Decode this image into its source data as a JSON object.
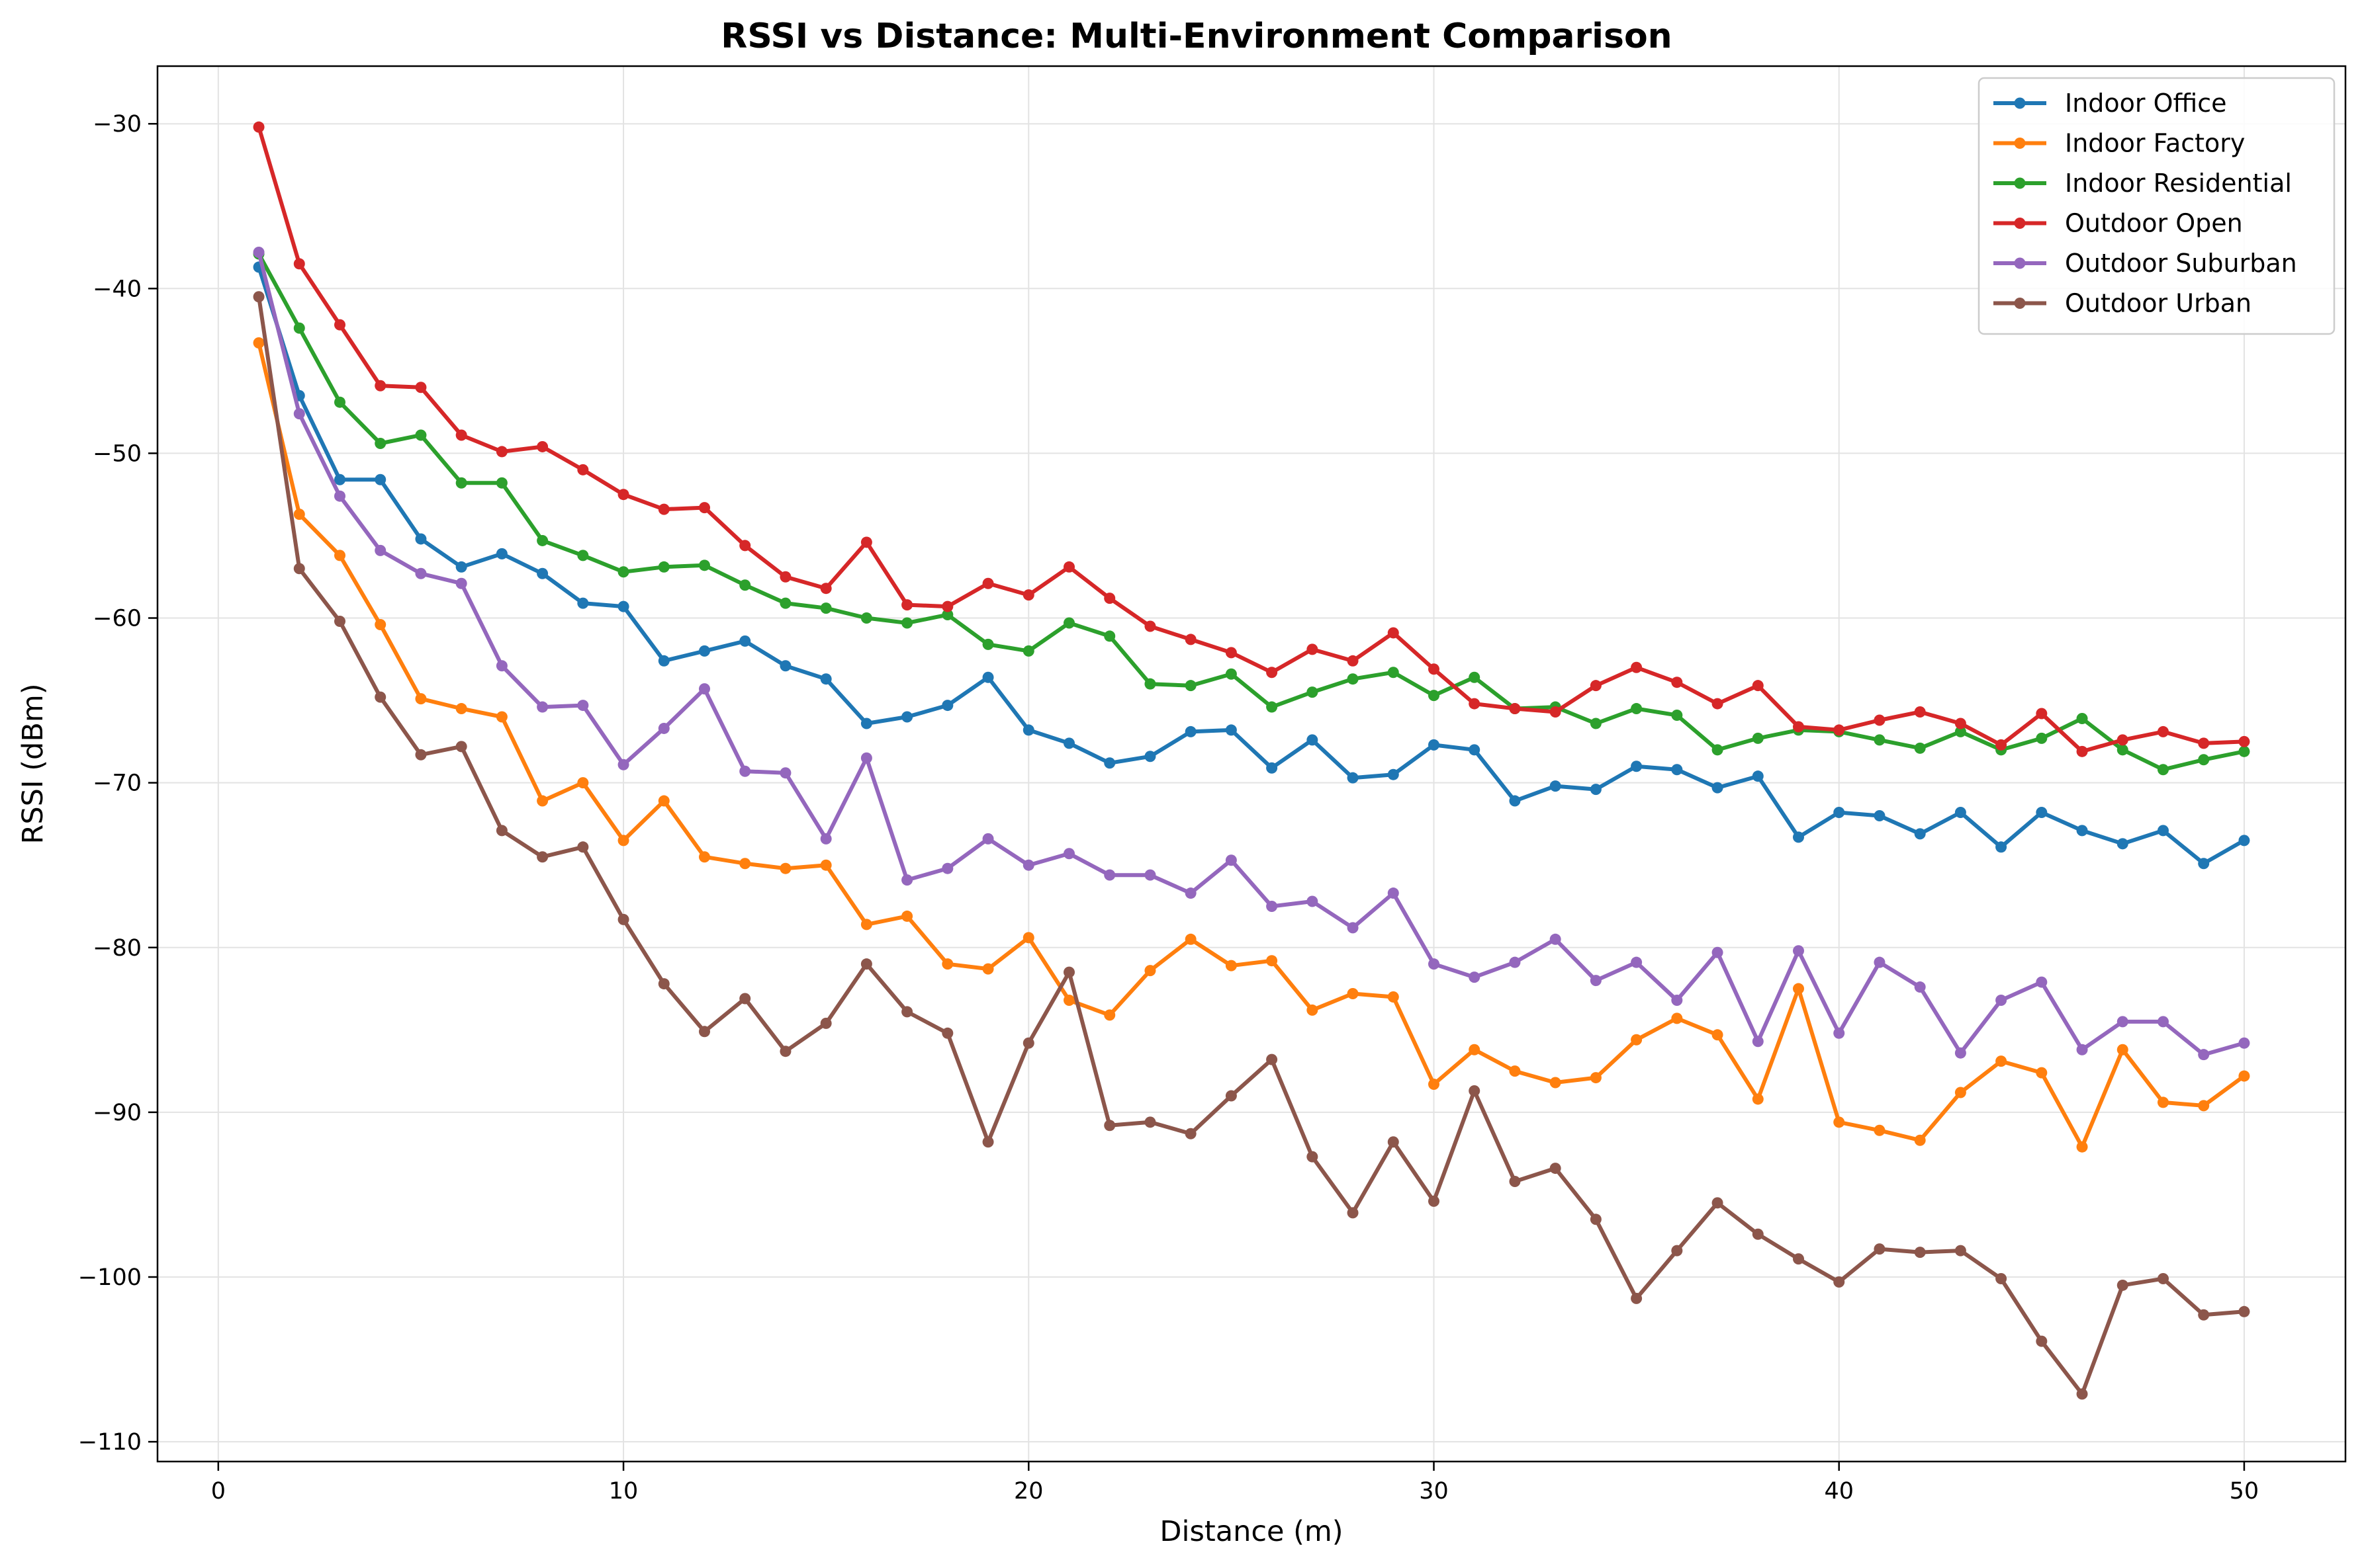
{
  "chart_data": {
    "type": "line",
    "title": "RSSI vs Distance: Multi-Environment Comparison",
    "xlabel": "Distance (m)",
    "ylabel": "RSSI (dBm)",
    "xlim": [
      -1.5,
      52.5
    ],
    "ylim": [
      -111.2,
      -26.5
    ],
    "xticks": [
      0,
      10,
      20,
      30,
      40,
      50
    ],
    "yticks": [
      -110,
      -100,
      -90,
      -80,
      -70,
      -60,
      -50,
      -40,
      -30
    ],
    "xtick_labels": [
      "0",
      "10",
      "20",
      "30",
      "40",
      "50"
    ],
    "ytick_labels": [
      "−110",
      "−100",
      "−90",
      "−80",
      "−70",
      "−60",
      "−50",
      "−40",
      "−30"
    ],
    "grid": true,
    "legend_position": "top-right",
    "x": [
      1,
      2,
      3,
      4,
      5,
      6,
      7,
      8,
      9,
      10,
      11,
      12,
      13,
      14,
      15,
      16,
      17,
      18,
      19,
      20,
      21,
      22,
      23,
      24,
      25,
      26,
      27,
      28,
      29,
      30,
      31,
      32,
      33,
      34,
      35,
      36,
      37,
      38,
      39,
      40,
      41,
      42,
      43,
      44,
      45,
      46,
      47,
      48,
      49,
      50
    ],
    "series": [
      {
        "name": "Indoor Office",
        "color": "#1f77b4",
        "values": [
          -38.7,
          -46.5,
          -51.6,
          -51.6,
          -55.2,
          -56.9,
          -56.1,
          -57.3,
          -59.1,
          -59.3,
          -62.6,
          -62.0,
          -61.4,
          -62.9,
          -63.7,
          -66.4,
          -66.0,
          -65.3,
          -63.6,
          -66.8,
          -67.6,
          -68.8,
          -68.4,
          -66.9,
          -66.8,
          -69.1,
          -67.4,
          -69.7,
          -69.5,
          -67.7,
          -68.0,
          -71.1,
          -70.2,
          -70.4,
          -69.0,
          -69.2,
          -70.3,
          -69.6,
          -73.3,
          -71.8,
          -72.0,
          -73.1,
          -71.8,
          -73.9,
          -71.8,
          -72.9,
          -73.7,
          -72.9,
          -74.9,
          -73.5
        ]
      },
      {
        "name": "Indoor Factory",
        "color": "#ff7f0e",
        "values": [
          -43.3,
          -53.7,
          -56.2,
          -60.4,
          -64.9,
          -65.5,
          -66.0,
          -71.1,
          -70.0,
          -73.5,
          -71.1,
          -74.5,
          -74.9,
          -75.2,
          -75.0,
          -78.6,
          -78.1,
          -81.0,
          -81.3,
          -79.4,
          -83.2,
          -84.1,
          -81.4,
          -79.5,
          -81.1,
          -80.8,
          -83.8,
          -82.8,
          -83.0,
          -88.3,
          -86.2,
          -87.5,
          -88.2,
          -87.9,
          -85.6,
          -84.3,
          -85.3,
          -89.2,
          -82.5,
          -90.6,
          -91.1,
          -91.7,
          -88.8,
          -86.9,
          -87.6,
          -92.1,
          -86.2,
          -89.4,
          -89.6,
          -87.8
        ]
      },
      {
        "name": "Indoor Residential",
        "color": "#2ca02c",
        "values": [
          -37.9,
          -42.4,
          -46.9,
          -49.4,
          -48.9,
          -51.8,
          -51.8,
          -55.3,
          -56.2,
          -57.2,
          -56.9,
          -56.8,
          -58.0,
          -59.1,
          -59.4,
          -60.0,
          -60.3,
          -59.8,
          -61.6,
          -62.0,
          -60.3,
          -61.1,
          -64.0,
          -64.1,
          -63.4,
          -65.4,
          -64.5,
          -63.7,
          -63.3,
          -64.7,
          -63.6,
          -65.5,
          -65.4,
          -66.4,
          -65.5,
          -65.9,
          -68.0,
          -67.3,
          -66.8,
          -66.9,
          -67.4,
          -67.9,
          -66.9,
          -68.0,
          -67.3,
          -66.1,
          -68.0,
          -69.2,
          -68.6,
          -68.1
        ]
      },
      {
        "name": "Outdoor Open",
        "color": "#d62728",
        "values": [
          -30.2,
          -38.5,
          -42.2,
          -45.9,
          -46.0,
          -48.9,
          -49.9,
          -49.6,
          -51.0,
          -52.5,
          -53.4,
          -53.3,
          -55.6,
          -57.5,
          -58.2,
          -55.4,
          -59.2,
          -59.3,
          -57.9,
          -58.6,
          -56.9,
          -58.8,
          -60.5,
          -61.3,
          -62.1,
          -63.3,
          -61.9,
          -62.6,
          -60.9,
          -63.1,
          -65.2,
          -65.5,
          -65.7,
          -64.1,
          -63.0,
          -63.9,
          -65.2,
          -64.1,
          -66.6,
          -66.8,
          -66.2,
          -65.7,
          -66.4,
          -67.7,
          -65.8,
          -68.1,
          -67.4,
          -66.9,
          -67.6,
          -67.5
        ]
      },
      {
        "name": "Outdoor Suburban",
        "color": "#9467bd",
        "values": [
          -37.8,
          -47.6,
          -52.6,
          -55.9,
          -57.3,
          -57.9,
          -62.9,
          -65.4,
          -65.3,
          -68.9,
          -66.7,
          -64.3,
          -69.3,
          -69.4,
          -73.4,
          -68.5,
          -75.9,
          -75.2,
          -73.4,
          -75.0,
          -74.3,
          -75.6,
          -75.6,
          -76.7,
          -74.7,
          -77.5,
          -77.2,
          -78.8,
          -76.7,
          -81.0,
          -81.8,
          -80.9,
          -79.5,
          -82.0,
          -80.9,
          -83.2,
          -80.3,
          -85.7,
          -80.2,
          -85.2,
          -80.9,
          -82.4,
          -86.4,
          -83.2,
          -82.1,
          -86.2,
          -84.5,
          -84.5,
          -86.5,
          -85.8
        ]
      },
      {
        "name": "Outdoor Urban",
        "color": "#8c564b",
        "values": [
          -40.5,
          -57.0,
          -60.2,
          -64.8,
          -68.3,
          -67.8,
          -72.9,
          -74.5,
          -73.9,
          -78.3,
          -82.2,
          -85.1,
          -83.1,
          -86.3,
          -84.6,
          -81.0,
          -83.9,
          -85.2,
          -91.8,
          -85.8,
          -81.5,
          -90.8,
          -90.6,
          -91.3,
          -89.0,
          -86.8,
          -92.7,
          -96.1,
          -91.8,
          -95.4,
          -88.7,
          -94.2,
          -93.4,
          -96.5,
          -101.3,
          -98.4,
          -95.5,
          -97.4,
          -98.9,
          -100.3,
          -98.3,
          -98.5,
          -98.4,
          -100.1,
          -103.9,
          -107.1,
          -100.5,
          -100.1,
          -102.3,
          -102.1
        ]
      }
    ]
  }
}
